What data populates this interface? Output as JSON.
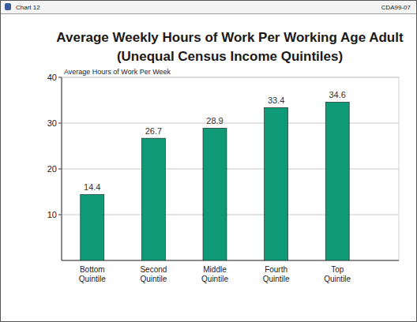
{
  "chart_data": {
    "type": "bar",
    "title": "Average Weekly Hours of Work Per Working Age Adult",
    "subtitle": "(Unequal Census Income Quintiles)",
    "y_label": "Average Hours of Work Per Week",
    "annotations": [
      "Chart 12",
      "CDA99-07"
    ],
    "categories": [
      "Bottom Quintile",
      "Second Quintile",
      "Middle Quintile",
      "Fourth Quintile",
      "Top Quintile"
    ],
    "values": [
      14.4,
      26.7,
      28.9,
      33.4,
      34.6
    ],
    "color": "#0e9a77",
    "ylim": [
      0,
      40
    ],
    "yticks": [
      10,
      20,
      30,
      40
    ],
    "grid": true,
    "data_labels": true
  }
}
